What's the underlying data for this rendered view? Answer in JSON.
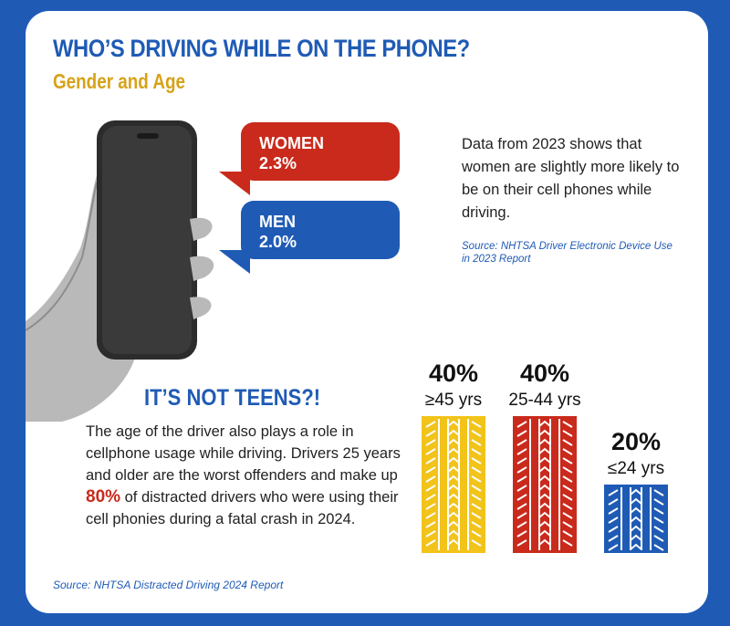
{
  "title": "WHO’S DRIVING WHILE ON THE PHONE?",
  "subtitle": "Gender and Age",
  "gender": {
    "women_label": "WOMEN",
    "women_value": "2.3%",
    "men_label": "MEN",
    "men_value": "2.0%",
    "description": "Data from 2023 shows that women are slightly more likely to be on their cell phones while driving.",
    "source": "Source: NHTSA Driver Electronic Device Use in 2023 Report"
  },
  "age": {
    "heading": "IT’S NOT TEENS?!",
    "desc_before": "The age of the driver also plays a role in cellphone usage while driving. Drivers 25 years and older are the worst offenders and make up ",
    "desc_highlight": "80%",
    "desc_after": " of distracted drivers who were using their cell phonies during a fatal crash in 2024.",
    "source": "Source: NHTSA Distracted Driving 2024 Report"
  },
  "colors": {
    "blue": "#1f5bb5",
    "red": "#c92a1c",
    "gold": "#d7a21a",
    "yellow": "#f2c318"
  },
  "chart_data": [
    {
      "type": "bar",
      "categories": [
        "WOMEN",
        "MEN"
      ],
      "values": [
        2.3,
        2.0
      ],
      "value_labels": [
        "2.3%",
        "2.0%"
      ],
      "colors": [
        "#c92a1c",
        "#1f5bb5"
      ]
    },
    {
      "type": "bar",
      "categories": [
        "≥45 yrs",
        "25-44 yrs",
        "≤24 yrs"
      ],
      "values": [
        40,
        40,
        20
      ],
      "value_labels": [
        "40%",
        "40%",
        "20%"
      ],
      "colors": [
        "#f2c318",
        "#c92a1c",
        "#1f5bb5"
      ]
    }
  ]
}
